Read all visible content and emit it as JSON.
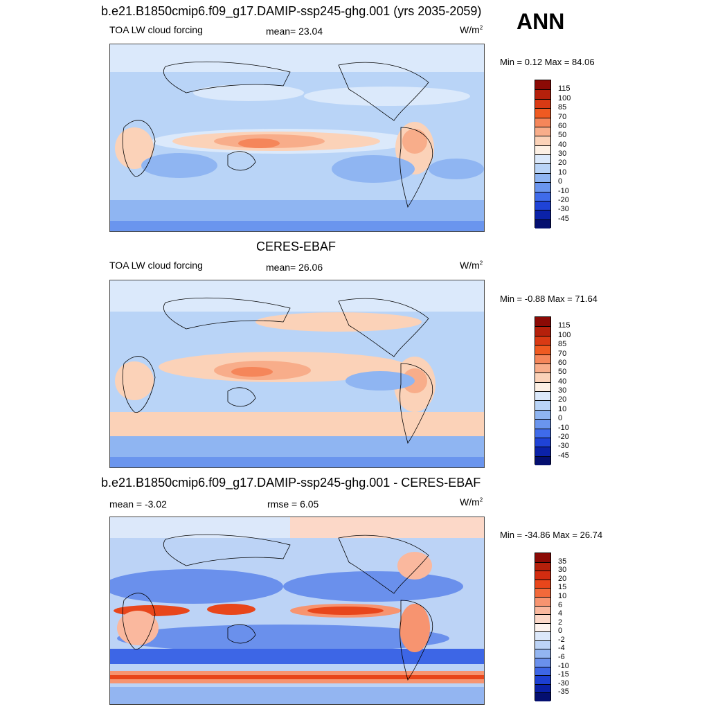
{
  "ann_label": "ANN",
  "panels": [
    {
      "title": "b.e21.B1850cmip6.f09_g17.DAMIP-ssp245-ghg.001 (yrs 2035-2059)",
      "left_label": "TOA LW cloud forcing",
      "center_label": "mean=  23.04",
      "units": "W/m",
      "units_sup": "2",
      "minmax": "Min =   0.12 Max =  84.06",
      "colorbar": {
        "labels": [
          "115",
          "100",
          "85",
          "70",
          "60",
          "50",
          "40",
          "30",
          "20",
          "10",
          "0",
          "-10",
          "-20",
          "-30",
          "-45"
        ],
        "colors": [
          "#8b0a05",
          "#b5200b",
          "#d93a14",
          "#ef5a21",
          "#f5865a",
          "#f8ad8a",
          "#fbd2b8",
          "#fdf0e4",
          "#dbe9fb",
          "#b9d4f7",
          "#8fb5f2",
          "#6a95ee",
          "#3f6bea",
          "#1f43d6",
          "#0b22a8",
          "#040f70"
        ]
      }
    },
    {
      "title": "CERES-EBAF",
      "left_label": "TOA LW cloud forcing",
      "center_label": "mean=  26.06",
      "units": "W/m",
      "units_sup": "2",
      "minmax": "Min =  -0.88 Max =  71.64",
      "colorbar": {
        "labels": [
          "115",
          "100",
          "85",
          "70",
          "60",
          "50",
          "40",
          "30",
          "20",
          "10",
          "0",
          "-10",
          "-20",
          "-30",
          "-45"
        ],
        "colors": [
          "#8b0a05",
          "#b5200b",
          "#d93a14",
          "#ef5a21",
          "#f5865a",
          "#f8ad8a",
          "#fbd2b8",
          "#fdf0e4",
          "#dbe9fb",
          "#b9d4f7",
          "#8fb5f2",
          "#6a95ee",
          "#3f6bea",
          "#1f43d6",
          "#0b22a8",
          "#040f70"
        ]
      }
    },
    {
      "title": "b.e21.B1850cmip6.f09_g17.DAMIP-ssp245-ghg.001 - CERES-EBAF",
      "left_label": "mean =  -3.02",
      "center_label": "rmse =   6.05",
      "units": "W/m",
      "units_sup": "2",
      "minmax": "Min = -34.86 Max =  26.74",
      "colorbar": {
        "labels": [
          "35",
          "30",
          "20",
          "15",
          "10",
          "6",
          "4",
          "2",
          "0",
          "-2",
          "-4",
          "-6",
          "-10",
          "-15",
          "-30",
          "-35"
        ],
        "colors": [
          "#8b0a05",
          "#b5200b",
          "#d22c10",
          "#e8461b",
          "#f2693a",
          "#f79470",
          "#fab89e",
          "#fcd8c8",
          "#fdf3ee",
          "#dce8fa",
          "#bcd3f6",
          "#93b5f1",
          "#6a90ec",
          "#3d66e6",
          "#1c3fd2",
          "#0a20a6",
          "#040f70"
        ]
      }
    }
  ]
}
